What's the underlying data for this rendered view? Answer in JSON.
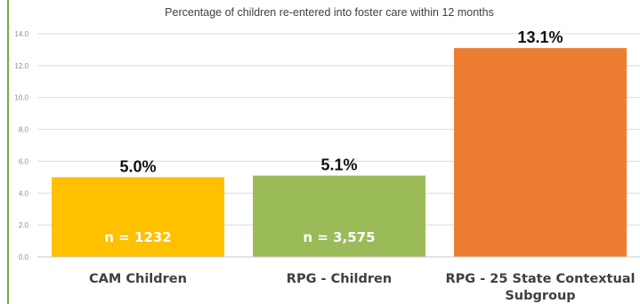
{
  "chart_data": {
    "type": "bar",
    "title": "Percentage of children re-entered into foster care within 12 months",
    "categories": [
      [
        "CAM Children"
      ],
      [
        "RPG - Children"
      ],
      [
        "RPG - 25 State Contextual",
        "Subgroup"
      ]
    ],
    "values": [
      5.0,
      5.1,
      13.1
    ],
    "value_labels": [
      "5.0%",
      "5.1%",
      "13.1%"
    ],
    "bar_inner_labels": [
      "n = 1232",
      "n = 3,575",
      ""
    ],
    "colors": [
      "#ffc000",
      "#9bbb59",
      "#ed7d31"
    ],
    "ylim": [
      0,
      14
    ],
    "yticks": [
      "0.0",
      "2.0",
      "4.0",
      "6.0",
      "8.0",
      "10.0",
      "12.0",
      "14.0"
    ],
    "grid": true,
    "legend": "none"
  },
  "colors": {
    "left_rule": "#6fae45"
  }
}
